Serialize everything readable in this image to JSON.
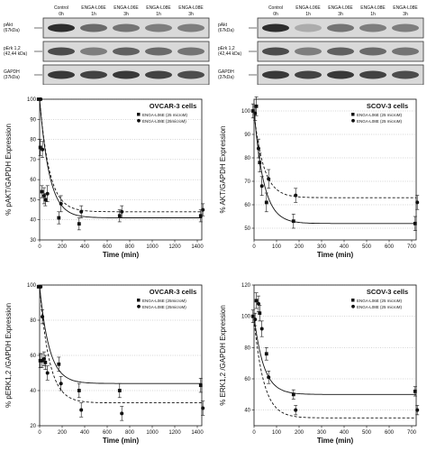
{
  "blots": [
    {
      "id": "blot-left",
      "columns": [
        {
          "treatment": "Control",
          "time": "0h"
        },
        {
          "treatment": "ENGA-L06E",
          "time": "1h"
        },
        {
          "treatment": "ENGA-L06E",
          "time": "3h"
        },
        {
          "treatment": "ENGA-L08E",
          "time": "1h"
        },
        {
          "treatment": "ENGA-L08E",
          "time": "3h"
        }
      ],
      "rows": [
        {
          "name": "pAkt",
          "kda": "(67kDa)"
        },
        {
          "name": "pErk 1,2",
          "kda": "(42,44 kDa)"
        },
        {
          "name": "GAPDH",
          "kda": "(37kDa)"
        }
      ]
    },
    {
      "id": "blot-right",
      "columns": [
        {
          "treatment": "Control",
          "time": "0h"
        },
        {
          "treatment": "ENGA-L06E",
          "time": "1h"
        },
        {
          "treatment": "ENGA-L06E",
          "time": "3h"
        },
        {
          "treatment": "ENGA-L08E",
          "time": "1h"
        },
        {
          "treatment": "ENGA-L08E",
          "time": "3h"
        }
      ],
      "rows": [
        {
          "name": "pAkt",
          "kda": "(67kDa)"
        },
        {
          "name": "pErk 1,2",
          "kda": "(42,44 kDa)"
        },
        {
          "name": "GAPDH",
          "kda": "(37kDa)"
        }
      ]
    }
  ],
  "chart_data": [
    {
      "id": "ovcar-akt",
      "type": "scatter",
      "title": "OVCAR-3 cells",
      "xlabel": "Time (min)",
      "ylabel": "% pAKT/GAPDH Expression",
      "xlim": [
        0,
        1440
      ],
      "ylim": [
        30,
        100
      ],
      "xticks": [
        0,
        200,
        400,
        600,
        800,
        1000,
        1200,
        1400
      ],
      "yticks": [
        30,
        40,
        50,
        60,
        70,
        80,
        90,
        100
      ],
      "grid": "horizontal",
      "legend": "top-right",
      "plateaus": [
        41,
        44
      ],
      "series": [
        {
          "name": "ENGA-L06E (25 microM)",
          "marker": "square",
          "line": "solid",
          "points": [
            [
              0,
              100,
              0
            ],
            [
              15,
              76,
              4
            ],
            [
              30,
              54,
              3
            ],
            [
              60,
              50,
              3
            ],
            [
              180,
              41,
              3
            ],
            [
              360,
              38,
              3
            ],
            [
              720,
              42,
              3
            ],
            [
              1440,
              42,
              3
            ]
          ]
        },
        {
          "name": "ENGA-L08E (25microM)",
          "marker": "circle",
          "line": "dashed",
          "points": [
            [
              0,
              100,
              0
            ],
            [
              15,
              75,
              4
            ],
            [
              30,
              52,
              4
            ],
            [
              60,
              53,
              4
            ],
            [
              180,
              48,
              4
            ],
            [
              360,
              44,
              3
            ],
            [
              720,
              44,
              3
            ],
            [
              1440,
              45,
              3
            ]
          ]
        }
      ]
    },
    {
      "id": "skov-akt",
      "type": "scatter",
      "title": "SCOV-3 cells",
      "xlabel": "Time (min)",
      "ylabel": "% AKT/GAPDH Expression",
      "xlim": [
        0,
        720
      ],
      "ylim": [
        45,
        105
      ],
      "xticks": [
        0,
        100,
        200,
        300,
        400,
        500,
        600,
        700
      ],
      "yticks": [
        50,
        60,
        70,
        80,
        90,
        100
      ],
      "grid": "horizontal",
      "legend": "top-right",
      "plateaus": [
        52,
        63
      ],
      "series": [
        {
          "name": "ENGA-L06E (25 microM)",
          "marker": "square",
          "line": "solid",
          "points": [
            [
              0,
              100,
              3
            ],
            [
              15,
              102,
              4
            ],
            [
              30,
              78,
              4
            ],
            [
              60,
              61,
              4
            ],
            [
              180,
              53,
              3
            ],
            [
              720,
              52,
              3
            ]
          ]
        },
        {
          "name": "ENGA-L08E (25 microM)",
          "marker": "circle",
          "line": "dashed",
          "points": [
            [
              0,
              99,
              3
            ],
            [
              15,
              84,
              4
            ],
            [
              30,
              68,
              4
            ],
            [
              60,
              71,
              4
            ],
            [
              180,
              64,
              3
            ],
            [
              720,
              61,
              3
            ]
          ]
        }
      ]
    },
    {
      "id": "ovcar-erk",
      "type": "scatter",
      "title": "OVCAR-3 cells",
      "xlabel": "Time (min)",
      "ylabel": "% pERK1,2 /GAPDH Expression",
      "xlim": [
        0,
        1440
      ],
      "ylim": [
        20,
        100
      ],
      "xticks": [
        0,
        200,
        400,
        600,
        800,
        1000,
        1200,
        1400
      ],
      "yticks": [
        20,
        40,
        60,
        80,
        100
      ],
      "grid": "horizontal",
      "legend": "top-right",
      "plateaus": [
        44,
        33
      ],
      "series": [
        {
          "name": "ENGA-L06E (25microM)",
          "marker": "square",
          "line": "solid",
          "points": [
            [
              0,
              99,
              0
            ],
            [
              15,
              57,
              4
            ],
            [
              30,
              57,
              4
            ],
            [
              60,
              56,
              4
            ],
            [
              180,
              55,
              4
            ],
            [
              360,
              40,
              4
            ],
            [
              720,
              40,
              4
            ],
            [
              1440,
              43,
              4
            ]
          ]
        },
        {
          "name": "ENGA-L08E (25microM)",
          "marker": "circle",
          "line": "dashed",
          "points": [
            [
              0,
              99,
              0
            ],
            [
              15,
              82,
              4
            ],
            [
              30,
              58,
              4
            ],
            [
              60,
              50,
              4
            ],
            [
              180,
              44,
              4
            ],
            [
              360,
              29,
              4
            ],
            [
              720,
              27,
              4
            ],
            [
              1440,
              30,
              4
            ]
          ]
        }
      ]
    },
    {
      "id": "skov-erk",
      "type": "scatter",
      "title": "SCOV-3 cells",
      "xlabel": "Time (min)",
      "ylabel": "% ERK1,2 /GAPDH Expression",
      "xlim": [
        0,
        720
      ],
      "ylim": [
        30,
        120
      ],
      "xticks": [
        0,
        100,
        200,
        300,
        400,
        500,
        600,
        700
      ],
      "yticks": [
        40,
        60,
        80,
        100,
        120
      ],
      "grid": "horizontal",
      "legend": "top-right",
      "plateaus": [
        50,
        35
      ],
      "series": [
        {
          "name": "ENGA-L06E (25 microM)",
          "marker": "square",
          "line": "solid",
          "points": [
            [
              0,
              100,
              4
            ],
            [
              15,
              110,
              5
            ],
            [
              30,
              102,
              5
            ],
            [
              60,
              76,
              4
            ],
            [
              180,
              50,
              3
            ],
            [
              720,
              52,
              3
            ]
          ]
        },
        {
          "name": "ENGA-L08E (25 microM)",
          "marker": "circle",
          "line": "dashed",
          "points": [
            [
              0,
              98,
              4
            ],
            [
              15,
              108,
              5
            ],
            [
              30,
              92,
              5
            ],
            [
              60,
              61,
              4
            ],
            [
              180,
              40,
              3
            ],
            [
              720,
              40,
              3
            ]
          ]
        }
      ]
    }
  ]
}
